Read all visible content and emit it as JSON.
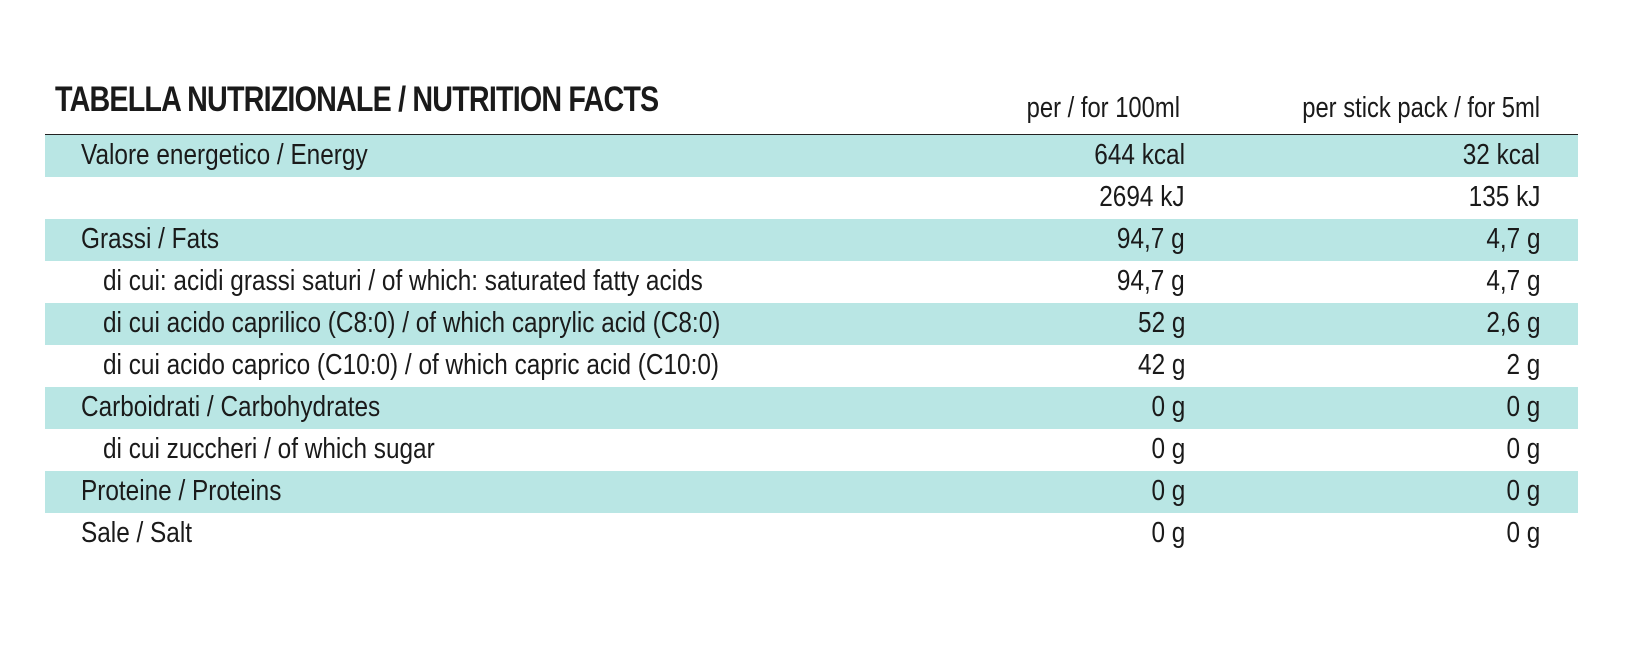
{
  "table": {
    "title": "TABELLA NUTRIZIONALE / NUTRITION FACTS",
    "col1_header": "per / for 100ml",
    "col2_header": "per stick pack / for 5ml",
    "colors": {
      "row_highlight": "#b9e6e4",
      "text": "#1a1a1a",
      "rule": "#222222"
    },
    "rows": [
      {
        "label": "Valore energetico / Energy",
        "per100": "644 kcal",
        "perStick": "32 kcal"
      },
      {
        "label": "",
        "per100": "2694 kJ",
        "perStick": "135 kJ"
      },
      {
        "label": "Grassi / Fats",
        "per100": "94,7 g",
        "perStick": "4,7 g"
      },
      {
        "label": "di cui: acidi grassi saturi / of which: saturated fatty acids",
        "per100": "94,7 g",
        "perStick": "4,7  g"
      },
      {
        "label": "di cui acido caprilico (C8:0) / of which caprylic acid (C8:0)",
        "per100": "52 g",
        "perStick": "2,6 g"
      },
      {
        "label": "di cui acido caprico (C10:0) / of which capric acid (C10:0)",
        "per100": "42 g",
        "perStick": "2 g"
      },
      {
        "label": "Carboidrati / Carbohydrates",
        "per100": "0 g",
        "perStick": "0 g"
      },
      {
        "label": "di cui zuccheri / of which sugar",
        "per100": "0 g",
        "perStick": "0 g"
      },
      {
        "label": "Proteine / Proteins",
        "per100": "0 g",
        "perStick": "0 g"
      },
      {
        "label": "Sale / Salt",
        "per100": "0 g",
        "perStick": "0 g"
      }
    ]
  }
}
